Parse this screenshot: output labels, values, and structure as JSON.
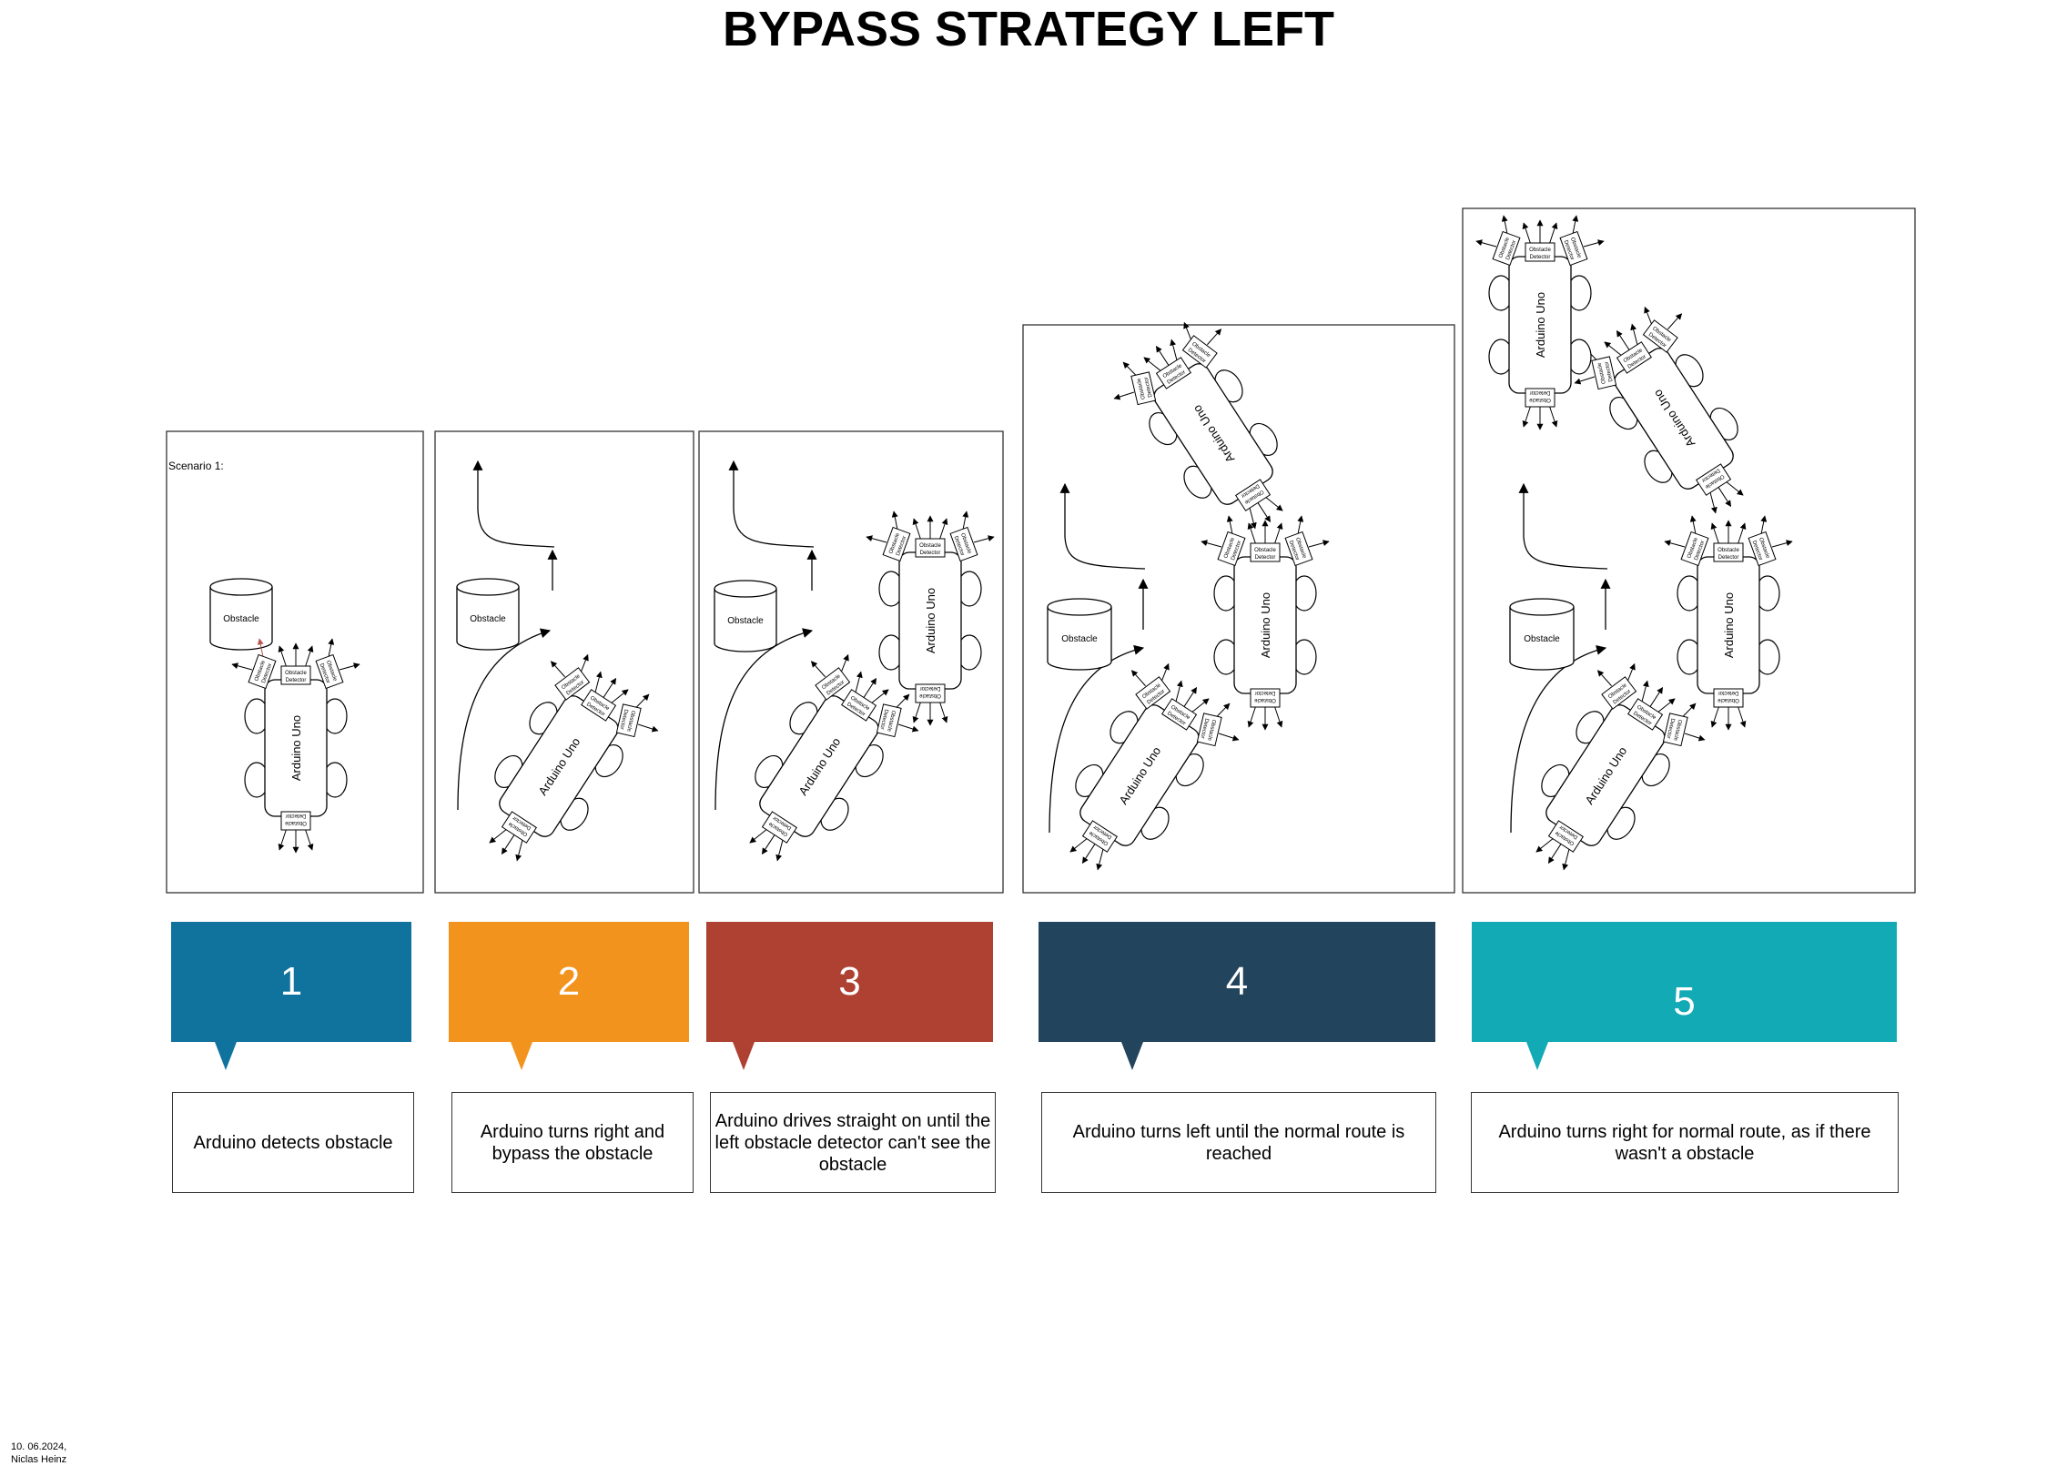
{
  "title": "BYPASS STRATEGY LEFT",
  "scenario_label": "Scenario 1:",
  "obstacle_label": "Obstacle",
  "robot_label": "Arduino Uno",
  "detector_label_line1": "Obstacle",
  "detector_label_line2": "Detector",
  "colors": {
    "step1": "#10739e",
    "step2": "#f2931e",
    "step3": "#ae4132",
    "step4": "#23445d",
    "step5": "#12aab5",
    "sensor_arrow_highlight": "#b85450"
  },
  "steps": [
    {
      "number": "1",
      "description": "Arduino detects obstacle"
    },
    {
      "number": "2",
      "description": "Arduino turns right and bypass the obstacle"
    },
    {
      "number": "3",
      "description": "Arduino drives straight on until the left obstacle detector can't see the obstacle"
    },
    {
      "number": "4",
      "description": "Arduino turns left until the normal route is reached"
    },
    {
      "number": "5",
      "description": "Arduino turns right for normal route, as if there wasn't a obstacle"
    }
  ],
  "footer": {
    "date": "10. 06.2024,",
    "author": "Niclas Heinz"
  }
}
